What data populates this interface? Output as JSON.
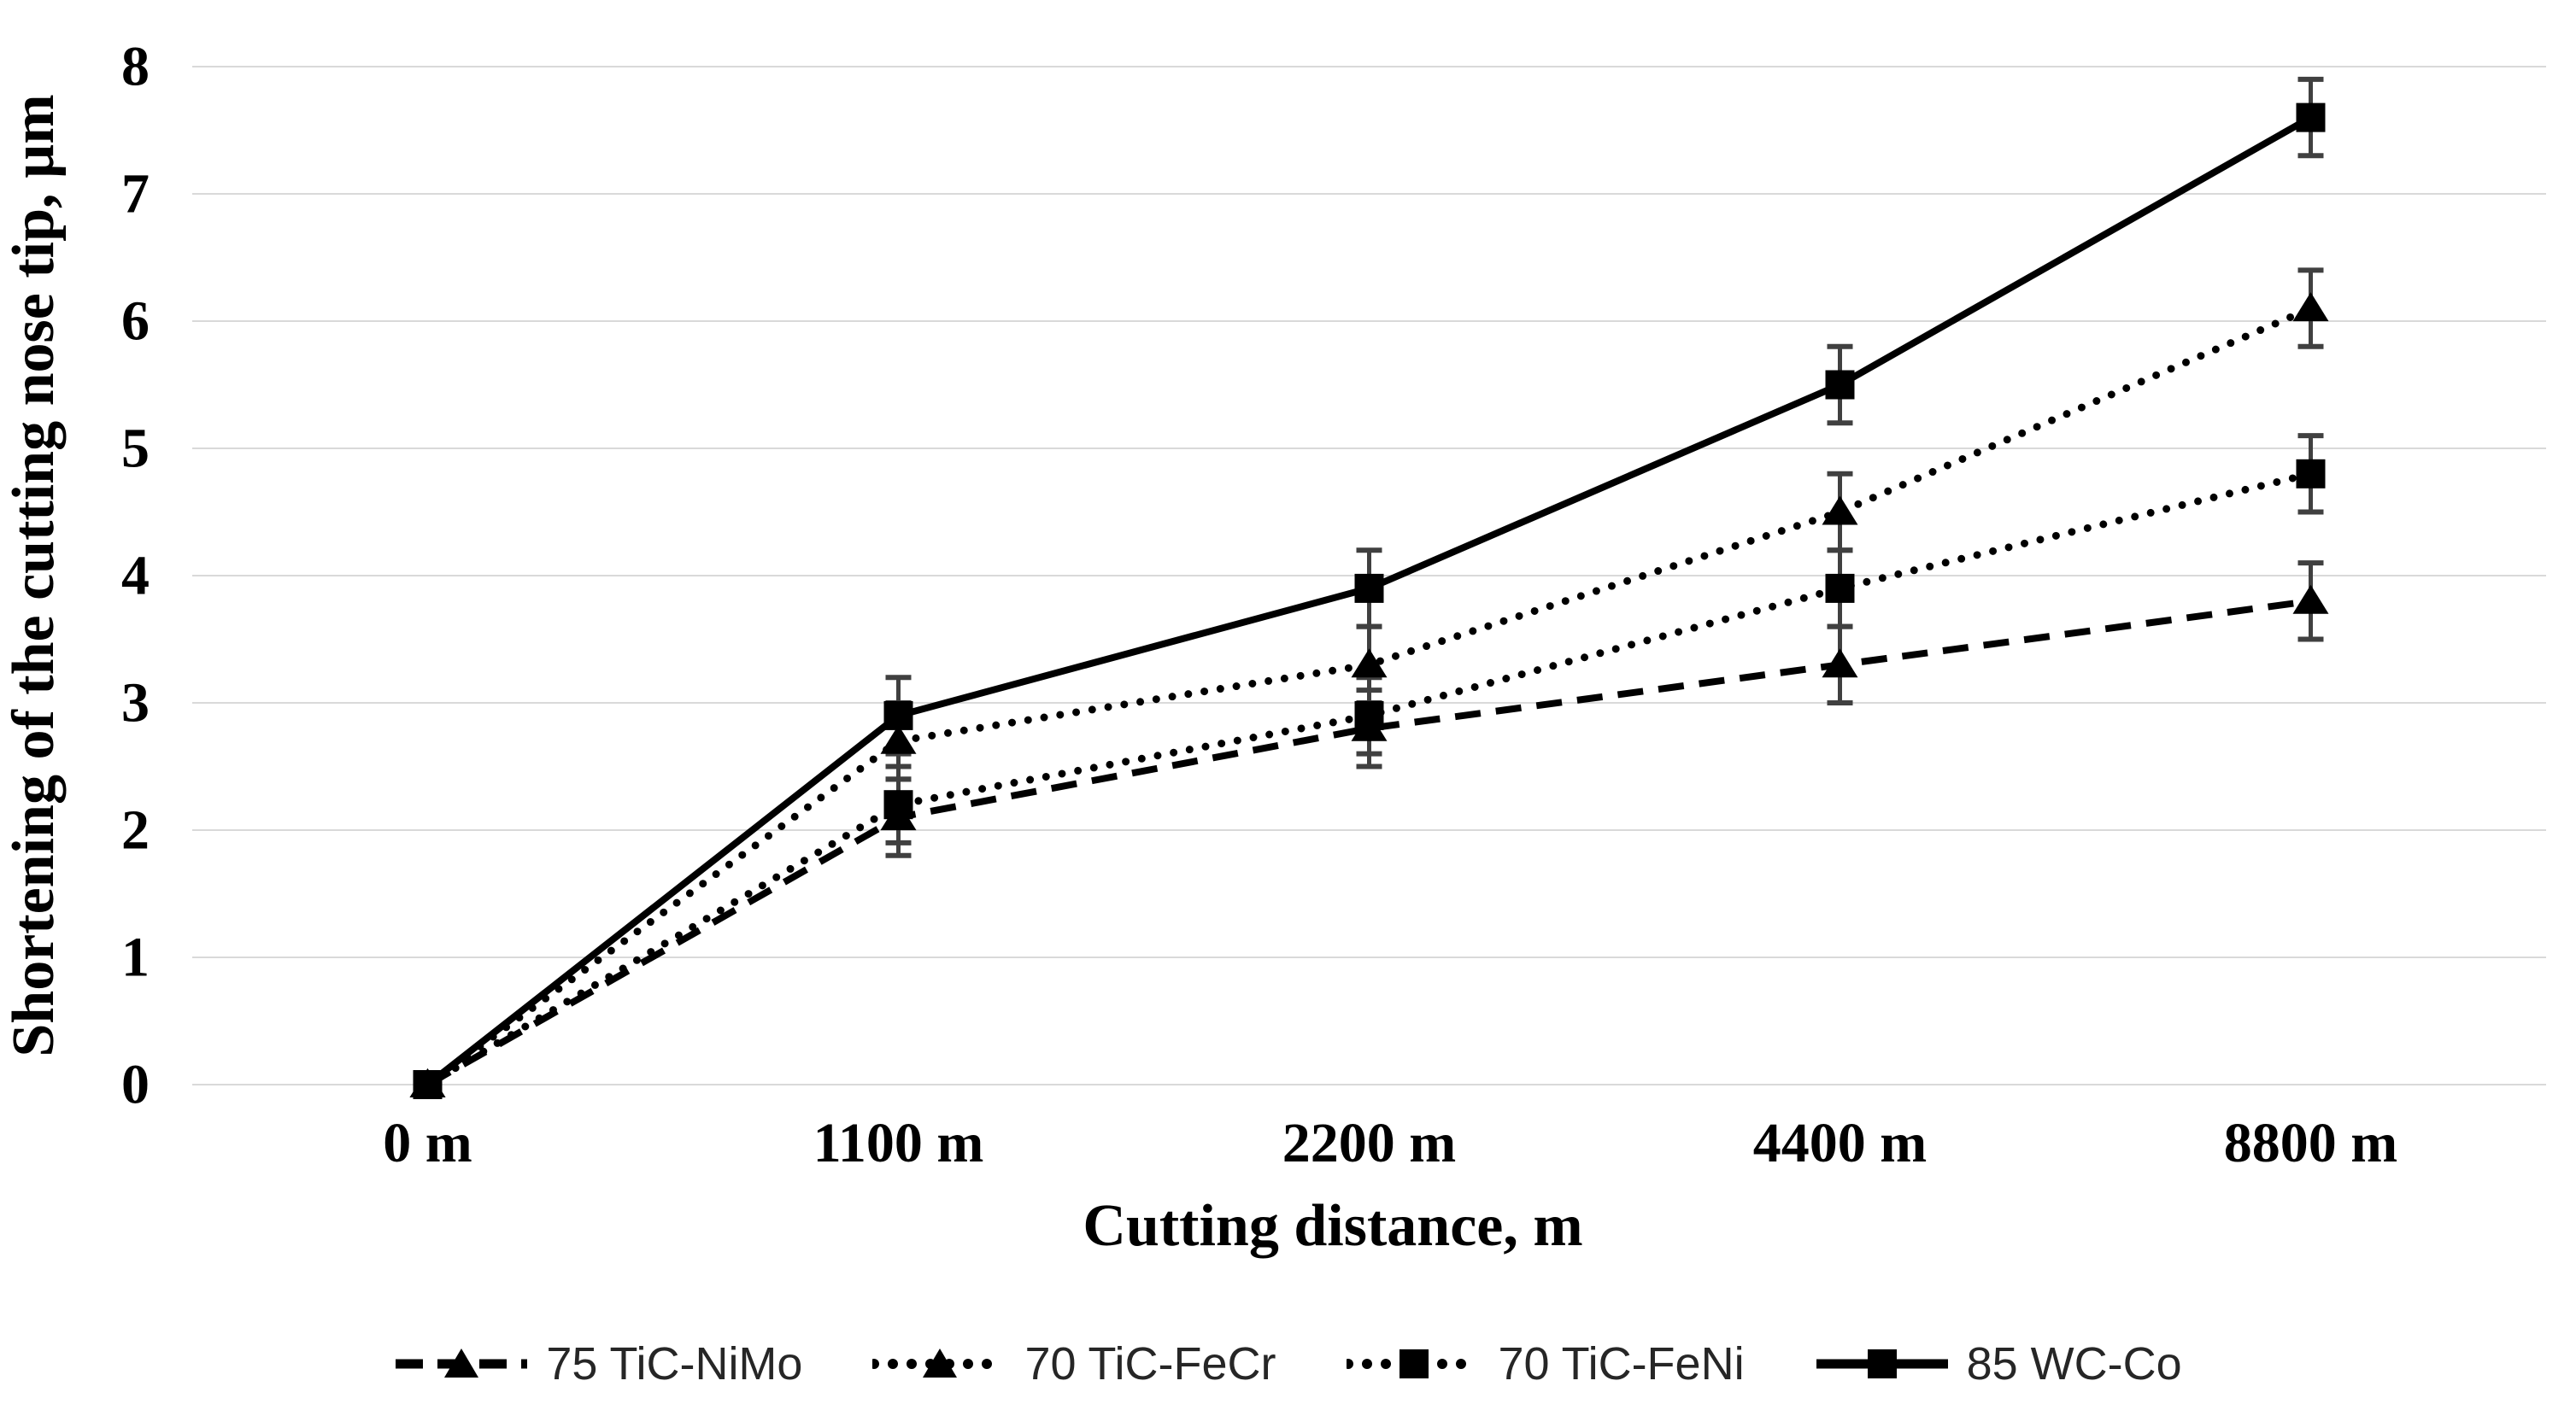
{
  "figure": {
    "background": "#ffffff"
  },
  "chart_data": {
    "type": "line",
    "title": "",
    "xlabel": "Cutting distance, m",
    "ylabel": "Shortening of the cutting nose tip, µm",
    "categories": [
      "0 m",
      "1100 m",
      "2200 m",
      "4400 m",
      "8800 m"
    ],
    "x_numeric_m": [
      0,
      1100,
      2200,
      4400,
      8800
    ],
    "yticks": [
      "0",
      "1",
      "2",
      "3",
      "4",
      "5",
      "6",
      "7",
      "8"
    ],
    "ylim": [
      0,
      8
    ],
    "grid": true,
    "legend_position": "bottom",
    "series": [
      {
        "name": "75 TiC-NiMo",
        "values": [
          0,
          2.1,
          2.8,
          3.3,
          3.8
        ],
        "errors": [
          0,
          0.3,
          0.3,
          0.3,
          0.3
        ],
        "line_style": "dashed",
        "marker": "triangle",
        "color": "#000000"
      },
      {
        "name": "70 TiC-FeCr",
        "values": [
          0,
          2.7,
          3.3,
          4.5,
          6.1
        ],
        "errors": [
          0,
          0.3,
          0.3,
          0.3,
          0.3
        ],
        "line_style": "dotted",
        "marker": "triangle",
        "color": "#000000"
      },
      {
        "name": "70 TiC-FeNi",
        "values": [
          0,
          2.2,
          2.9,
          3.9,
          4.8
        ],
        "errors": [
          0,
          0.3,
          0.3,
          0.3,
          0.3
        ],
        "line_style": "dotted",
        "marker": "square",
        "color": "#000000"
      },
      {
        "name": "85 WC-Co",
        "values": [
          0,
          2.9,
          3.9,
          5.5,
          7.6
        ],
        "errors": [
          0,
          0.3,
          0.3,
          0.3,
          0.3
        ],
        "line_style": "solid",
        "marker": "square",
        "color": "#000000"
      }
    ],
    "colors": {
      "grid": "#d9d9d9",
      "series": "#000000",
      "error_bar": "#404040",
      "legend_text": "#262626",
      "axis_text": "#000000"
    }
  }
}
